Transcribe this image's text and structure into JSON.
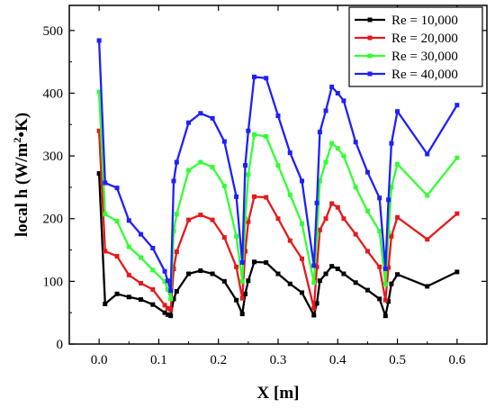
{
  "chart_data": {
    "type": "line",
    "xlabel": "X [m]",
    "ylabel_main": "local h (W/m",
    "ylabel_sup": "2",
    "ylabel_end": "•K)",
    "xlim": [
      -0.05,
      0.65
    ],
    "ylim": [
      0,
      540
    ],
    "xticks": [
      0.0,
      0.1,
      0.2,
      0.3,
      0.4,
      0.5,
      0.6
    ],
    "xtick_labels": [
      "0.0",
      "0.1",
      "0.2",
      "0.3",
      "0.4",
      "0.5",
      "0.6"
    ],
    "yticks": [
      0,
      100,
      200,
      300,
      400,
      500
    ],
    "ytick_labels": [
      "0",
      "100",
      "200",
      "300",
      "400",
      "500"
    ],
    "grid": false,
    "legend_position": "top-right",
    "x": [
      0.0,
      0.01,
      0.03,
      0.05,
      0.07,
      0.09,
      0.11,
      0.115,
      0.12,
      0.125,
      0.13,
      0.15,
      0.17,
      0.19,
      0.21,
      0.23,
      0.24,
      0.245,
      0.25,
      0.26,
      0.28,
      0.3,
      0.32,
      0.34,
      0.36,
      0.365,
      0.37,
      0.38,
      0.39,
      0.4,
      0.41,
      0.43,
      0.45,
      0.47,
      0.48,
      0.485,
      0.49,
      0.5,
      0.55,
      0.6
    ],
    "series": [
      {
        "name": "Re = 10,000",
        "color": "#000000",
        "values": [
          272,
          64,
          80,
          75,
          71,
          63,
          50,
          47,
          45,
          72,
          84,
          112,
          117,
          112,
          100,
          70,
          48,
          80,
          101,
          131,
          130,
          112,
          96,
          82,
          46,
          65,
          101,
          112,
          124,
          120,
          112,
          98,
          86,
          72,
          45,
          68,
          96,
          111,
          92,
          115
        ]
      },
      {
        "name": "Re = 20,000",
        "color": "#e41a1c",
        "values": [
          340,
          148,
          140,
          110,
          97,
          87,
          62,
          57,
          55,
          120,
          147,
          198,
          206,
          198,
          170,
          123,
          73,
          148,
          195,
          235,
          234,
          200,
          165,
          136,
          57,
          123,
          182,
          200,
          224,
          218,
          200,
          175,
          148,
          123,
          70,
          122,
          172,
          202,
          167,
          208
        ]
      },
      {
        "name": "Re = 30,000",
        "color": "#33ff33",
        "values": [
          402,
          207,
          196,
          155,
          138,
          118,
          100,
          87,
          72,
          180,
          207,
          277,
          290,
          282,
          252,
          172,
          100,
          200,
          270,
          334,
          331,
          285,
          238,
          192,
          98,
          175,
          260,
          290,
          320,
          312,
          300,
          250,
          212,
          180,
          95,
          178,
          250,
          287,
          237,
          297
        ]
      },
      {
        "name": "Re = 40,000",
        "color": "#1f1fff",
        "values": [
          484,
          257,
          249,
          197,
          175,
          153,
          116,
          101,
          85,
          260,
          290,
          353,
          368,
          360,
          323,
          235,
          130,
          285,
          340,
          426,
          424,
          364,
          305,
          260,
          125,
          225,
          338,
          372,
          410,
          400,
          388,
          322,
          274,
          233,
          120,
          230,
          320,
          371,
          303,
          381
        ]
      }
    ]
  }
}
